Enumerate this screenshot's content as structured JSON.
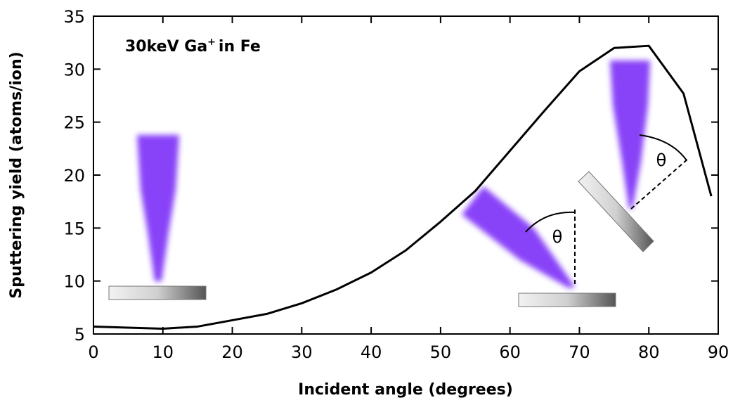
{
  "chart_data": {
    "type": "line",
    "xlabel": "Incident angle (degrees)",
    "ylabel": "Sputtering yield (atoms/ion)",
    "annotation": {
      "text": "30keV Ga",
      "superscript": "+",
      "tail": "in Fe"
    },
    "angle_labels": [
      "θ",
      "θ"
    ],
    "x": [
      0,
      10,
      15,
      20,
      25,
      30,
      35,
      40,
      45,
      50,
      55,
      60,
      65,
      70,
      75,
      80,
      85,
      89
    ],
    "series": [
      {
        "color": "#000000",
        "values": [
          5.7,
          5.5,
          5.7,
          6.3,
          6.9,
          7.9,
          9.2,
          10.8,
          12.9,
          15.6,
          18.5,
          22.3,
          26.1,
          29.8,
          32.0,
          32.2,
          27.7,
          18.0
        ]
      }
    ],
    "xlim": [
      0,
      90
    ],
    "xticks": [
      0,
      10,
      20,
      30,
      40,
      50,
      60,
      70,
      80,
      90
    ],
    "ylim": [
      5,
      35
    ],
    "yticks": [
      5,
      10,
      15,
      20,
      25,
      30,
      35
    ]
  }
}
